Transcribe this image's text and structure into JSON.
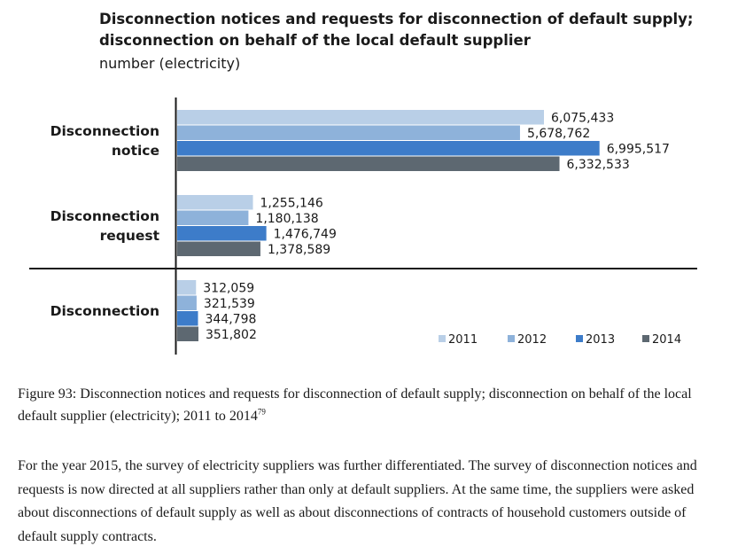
{
  "chart_data": {
    "type": "bar",
    "orientation": "horizontal",
    "title_lines": [
      "Disconnection notices and requests for disconnection of default supply;",
      "disconnection on behalf of the local default supplier"
    ],
    "subtitle": "number (electricity)",
    "categories": [
      [
        "Disconnection",
        "notice"
      ],
      [
        "Disconnection",
        "request"
      ],
      [
        "Disconnection"
      ]
    ],
    "series": [
      {
        "name": "2011",
        "color": "#b9cfe7",
        "values": [
          6075433,
          1255146,
          312059
        ],
        "labels": [
          "6,075,433",
          "1,255,146",
          "312,059"
        ]
      },
      {
        "name": "2012",
        "color": "#8eb2da",
        "values": [
          5678762,
          1180138,
          321539
        ],
        "labels": [
          "5,678,762",
          "1,180,138",
          "321,539"
        ]
      },
      {
        "name": "2013",
        "color": "#3d7cc9",
        "values": [
          6995517,
          1476749,
          344798
        ],
        "labels": [
          "6,995,517",
          "1,476,749",
          "344,798"
        ]
      },
      {
        "name": "2014",
        "color": "#5d6871",
        "values": [
          6332533,
          1378589,
          351802
        ],
        "labels": [
          "6,332,533",
          "1,378,589",
          "351,802"
        ]
      }
    ],
    "xlim": [
      0,
      8000000
    ],
    "grid": false,
    "legend_position": "bottom-right"
  },
  "caption": {
    "text": "Figure 93: Disconnection notices and requests for disconnection of default supply; disconnection on behalf of the local default supplier (electricity); 2011 to 2014",
    "footnote": "79"
  },
  "body_text": "For the year 2015, the survey of electricity suppliers was further differentiated. The survey of disconnection notices and requests is now directed at all suppliers rather than only at default suppliers. At the same time, the suppliers were asked about disconnections of default supply as well as about disconnections of contracts of household customers outside of default supply contracts."
}
